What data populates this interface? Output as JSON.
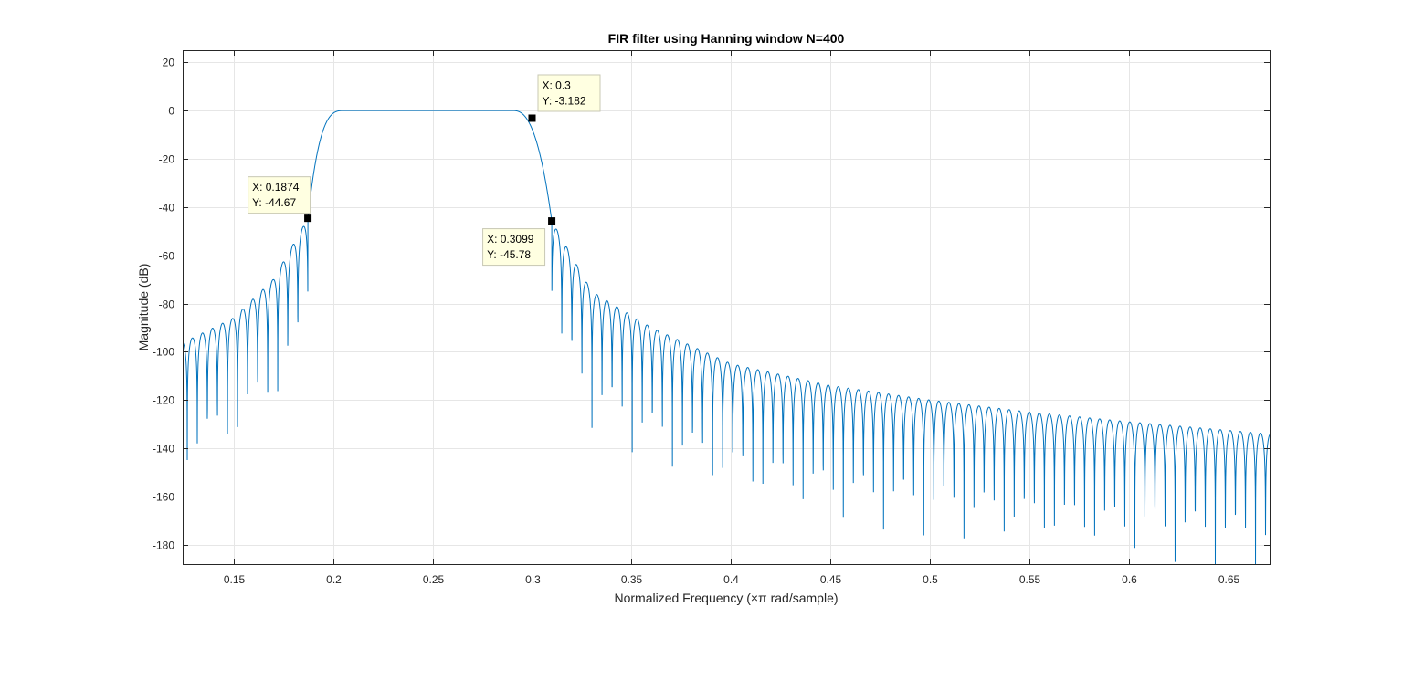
{
  "figure": {
    "background": "#ffffff",
    "plot_background": "#ffffff"
  },
  "chart_data": {
    "type": "line",
    "title": "FIR filter using Hanning window N=400",
    "xlabel": "Normalized Frequency  (×π rad/sample)",
    "ylabel": "Magnitude (dB)",
    "xlim": [
      0.1245,
      0.6705
    ],
    "ylim": [
      -188,
      25
    ],
    "x_ticks": [
      0.15,
      0.2,
      0.25,
      0.3,
      0.35,
      0.4,
      0.45,
      0.5,
      0.55,
      0.6,
      0.65
    ],
    "x_tick_labels": [
      "0.15",
      "0.2",
      "0.25",
      "0.3",
      "0.35",
      "0.4",
      "0.45",
      "0.5",
      "0.55",
      "0.6",
      "0.65"
    ],
    "y_ticks": [
      20,
      0,
      -20,
      -40,
      -60,
      -80,
      -100,
      -120,
      -140,
      -160,
      -180
    ],
    "y_tick_labels": [
      "20",
      "0",
      "-20",
      "-40",
      "-60",
      "-80",
      "-100",
      "-120",
      "-140",
      "-160",
      "-180"
    ],
    "grid": true,
    "line_color": "#0072bd",
    "grid_color": "#e6e6e6",
    "series": [
      {
        "description": "bandpass magnitude response",
        "passband": [
          0.2,
          0.3
        ],
        "peak_db": 0,
        "points": [
          {
            "x": 0.1874,
            "y": -44.67
          },
          {
            "x": 0.2,
            "y": 0
          },
          {
            "x": 0.29,
            "y": 0
          },
          {
            "x": 0.3,
            "y": -3.182
          },
          {
            "x": 0.3099,
            "y": -45.78
          }
        ],
        "sidelobe_envelope_lower": [
          {
            "x": 0.125,
            "y": -96
          },
          {
            "x": 0.15,
            "y": -86
          },
          {
            "x": 0.17,
            "y": -70
          },
          {
            "x": 0.1874,
            "y": -44.67
          }
        ],
        "sidelobe_envelope_upper": [
          {
            "x": 0.3099,
            "y": -45.78
          },
          {
            "x": 0.33,
            "y": -75
          },
          {
            "x": 0.36,
            "y": -90
          },
          {
            "x": 0.4,
            "y": -105
          },
          {
            "x": 0.45,
            "y": -114
          },
          {
            "x": 0.5,
            "y": -120
          },
          {
            "x": 0.55,
            "y": -125
          },
          {
            "x": 0.6,
            "y": -129
          },
          {
            "x": 0.67,
            "y": -134
          }
        ]
      }
    ],
    "annotations": [
      {
        "x": 0.1874,
        "y": -44.67,
        "label_x": "X: 0.1874",
        "label_y": "Y: -44.67",
        "anchor": "upper-left"
      },
      {
        "x": 0.3,
        "y": -3.182,
        "label_x": "X: 0.3",
        "label_y": "Y: -3.182",
        "anchor": "upper-right"
      },
      {
        "x": 0.3099,
        "y": -45.78,
        "label_x": "X: 0.3099",
        "label_y": "Y: -45.78",
        "anchor": "lower-left"
      }
    ]
  }
}
